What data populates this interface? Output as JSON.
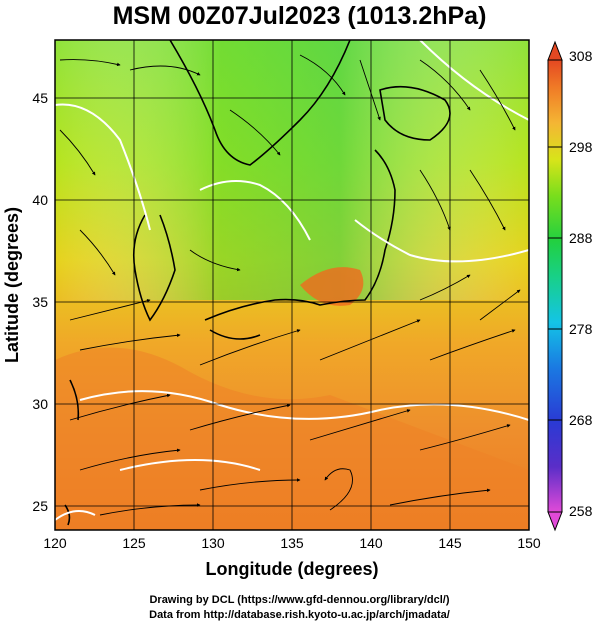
{
  "title": "MSM 00Z07Jul2023 (1013.2hPa)",
  "credits": {
    "line1": "Drawing by DCL (https://www.gfd-dennou.org/library/dcl/)",
    "line2": "Data from http://database.rish.kyoto-u.ac.jp/arch/jmadata/"
  },
  "map": {
    "xlabel": "Longitude (degrees)",
    "ylabel": "Latitude  (degrees)",
    "xlim": [
      120,
      150
    ],
    "ylim": [
      22.4,
      47.6
    ],
    "xticks": [
      120,
      125,
      130,
      135,
      140,
      145,
      150
    ],
    "yticks": [
      25,
      30,
      35,
      40,
      45
    ],
    "grid": true,
    "field": "temperature (K) shaded, wind streamlines, white pressure contours"
  },
  "colorbar": {
    "min": 258,
    "max": 308,
    "ticks": [
      258,
      268,
      278,
      288,
      298,
      308
    ],
    "colors": [
      "#e04ad8",
      "#3b2fc4",
      "#1e6ee0",
      "#14c8e6",
      "#22d860",
      "#62e01e",
      "#d6e61a",
      "#f5c23a",
      "#f08a24",
      "#e44822"
    ]
  }
}
